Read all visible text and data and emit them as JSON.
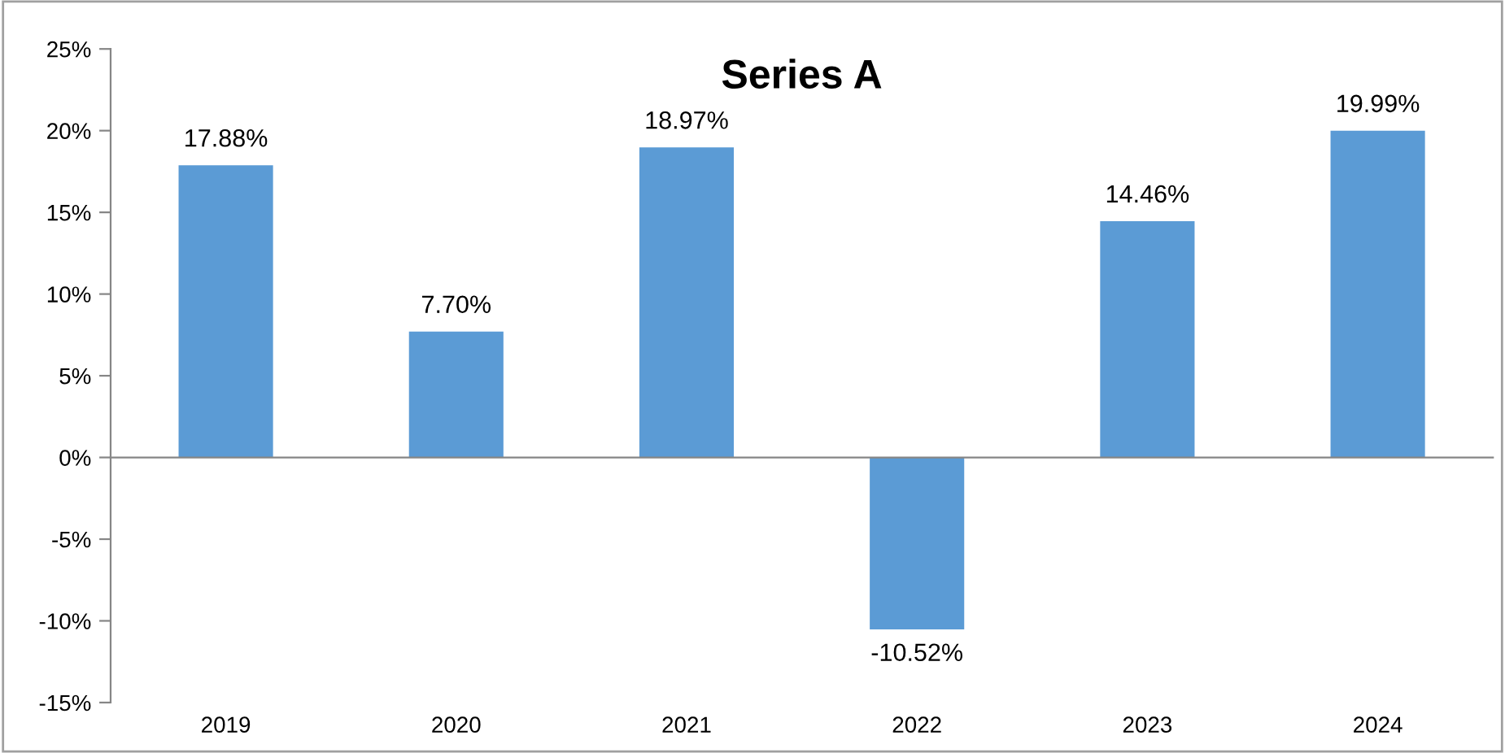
{
  "chart_data": {
    "type": "bar",
    "title": "Series A",
    "categories": [
      "2019",
      "2020",
      "2021",
      "2022",
      "2023",
      "2024"
    ],
    "values": [
      17.88,
      7.7,
      18.97,
      -10.52,
      14.46,
      19.99
    ],
    "value_labels": [
      "17.88%",
      "7.70%",
      "18.97%",
      "-10.52%",
      "14.46%",
      "19.99%"
    ],
    "color": "#5b9bd5",
    "ylim": [
      -15,
      25
    ],
    "yticks": [
      {
        "value": -15,
        "label": "-15%"
      },
      {
        "value": -10,
        "label": "-10%"
      },
      {
        "value": -5,
        "label": "-5%"
      },
      {
        "value": 0,
        "label": "0%"
      },
      {
        "value": 5,
        "label": "5%"
      },
      {
        "value": 10,
        "label": "10%"
      },
      {
        "value": 15,
        "label": "15%"
      },
      {
        "value": 20,
        "label": "20%"
      },
      {
        "value": 25,
        "label": "25%"
      }
    ],
    "legend": false
  }
}
